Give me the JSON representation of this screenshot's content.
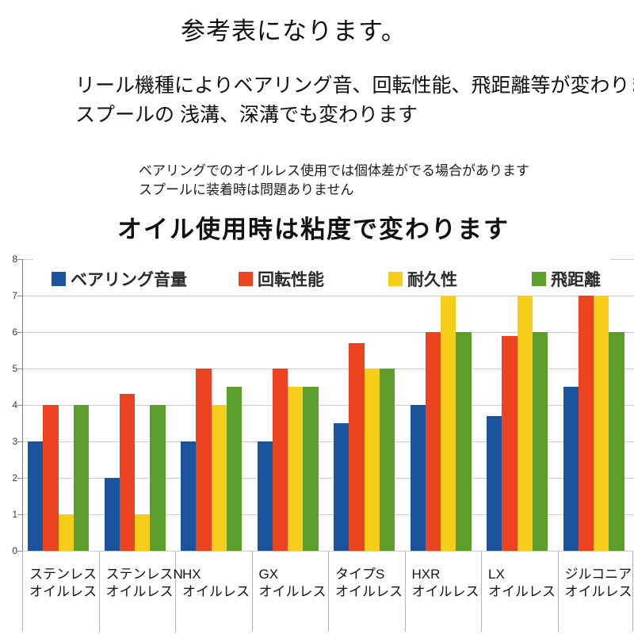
{
  "header": {
    "title": "参考表になります。",
    "paragraph": [
      "リール機種によりベアリング音、回転性能、飛距離等が変わります。",
      "スプールの 浅溝、深溝でも変わります"
    ],
    "note": [
      "ベアリングでのオイルレス使用では個体差がでる場合があります",
      "スプールに装着時は問題ありません"
    ],
    "subtitle": "オイル使用時は粘度で変わります"
  },
  "chart_data": {
    "type": "bar",
    "categories": [
      [
        "ステンレス",
        "オイルレス"
      ],
      [
        "ステンレスN",
        "オイルレス"
      ],
      [
        "HX",
        "オイルレス"
      ],
      [
        "GX",
        "オイルレス"
      ],
      [
        "タイプS",
        "オイルレス"
      ],
      [
        "HXR",
        "オイルレス"
      ],
      [
        "LX",
        "オイルレス"
      ],
      [
        "ジルコニア",
        "オイルレス"
      ]
    ],
    "series": [
      {
        "name": "ベアリング音量",
        "color": "#1a549c",
        "values": [
          3,
          2,
          3,
          3,
          3.5,
          4,
          3.7,
          4.5
        ]
      },
      {
        "name": "回転性能",
        "color": "#ec4420",
        "values": [
          4,
          4.3,
          5,
          5,
          5.7,
          6,
          5.9,
          7
        ]
      },
      {
        "name": "耐久性",
        "color": "#f6ce1a",
        "values": [
          1,
          1,
          4,
          4.5,
          5,
          7,
          7,
          7
        ]
      },
      {
        "name": "飛距離",
        "color": "#5c9e2b",
        "values": [
          4,
          4,
          4.5,
          4.5,
          5,
          6,
          6,
          6
        ]
      }
    ],
    "ylim": [
      0,
      8
    ],
    "yticks": [
      0,
      1,
      2,
      3,
      4,
      5,
      6,
      7,
      8
    ],
    "grid": true,
    "legend_position": "top-inside",
    "xlabel": "",
    "ylabel": ""
  }
}
